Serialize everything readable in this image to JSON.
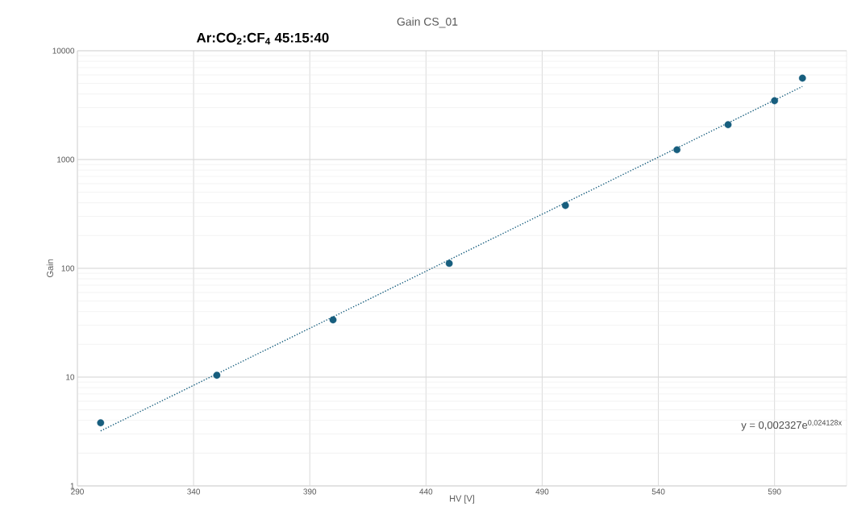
{
  "chart_data": {
    "type": "scatter",
    "title": "Gain CS_01",
    "subtitle": "Ar:CO$_{2}$:CF$_{4}$ 45:15:40",
    "xlabel": "HV [V]",
    "ylabel": "Gain",
    "x": [
      300,
      350,
      400,
      450,
      500,
      548,
      570,
      590,
      602
    ],
    "series": [
      {
        "color": "#175e7e",
        "marker": "circle",
        "values": [
          3.8,
          10.4,
          33.6,
          111,
          378,
          1230,
          2090,
          3470,
          5600
        ]
      },
      {
        "type": "line",
        "color": "#175e7e",
        "line_style": "dotted",
        "marker": "none",
        "x": [
          300,
          602
        ],
        "values": [
          3.2,
          4700
        ]
      }
    ],
    "annotations": [
      "y = 0,002327e$^{0,024128x}$"
    ],
    "log": "y",
    "grid": true,
    "xlim": [
      290,
      621
    ],
    "ylim": [
      1,
      10000
    ],
    "xticks": [
      290,
      340,
      390,
      440,
      490,
      540,
      590
    ],
    "yticks": [
      1,
      10,
      100,
      1000,
      10000
    ]
  }
}
